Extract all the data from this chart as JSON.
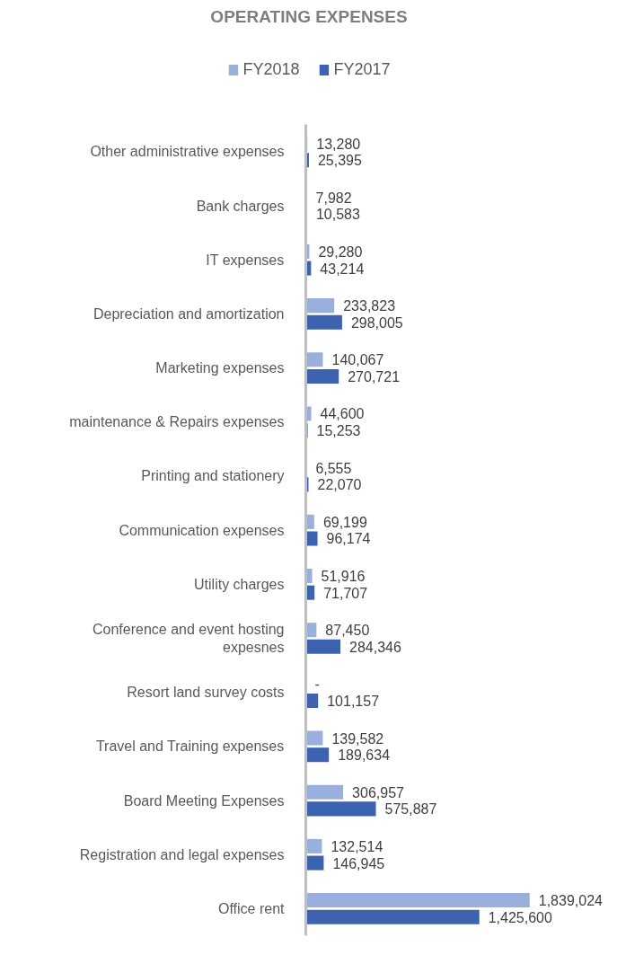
{
  "chart_data": {
    "type": "bar",
    "orientation": "horizontal",
    "title": "OPERATING EXPENSES",
    "categories": [
      "Other administrative expenses",
      "Bank charges",
      "IT expenses",
      "Depreciation and amortization",
      "Marketing expenses",
      "maintenance & Repairs expenses",
      "Printing and stationery",
      "Communication expenses",
      "Utility charges",
      "Conference and event hosting expesnes",
      "Resort land survey costs",
      "Travel and Training expenses",
      "Board Meeting Expenses",
      "Registration and legal expenses",
      "Office rent"
    ],
    "series": [
      {
        "name": "FY2018",
        "color": "#9aafdc",
        "values": [
          13280,
          7982,
          29280,
          233823,
          140067,
          44600,
          6555,
          69199,
          51916,
          87450,
          0,
          139582,
          306957,
          132514,
          1839024
        ],
        "value_labels": [
          "13,280",
          "7,982",
          "29,280",
          "233,823",
          "140,067",
          "44,600",
          "6,555",
          "69,199",
          "51,916",
          "87,450",
          "-",
          "139,582",
          "306,957",
          "132,514",
          "1,839,024"
        ]
      },
      {
        "name": "FY2017",
        "color": "#3c62b0",
        "values": [
          25395,
          10583,
          43214,
          298005,
          270721,
          15253,
          22070,
          96174,
          71707,
          284346,
          101157,
          189634,
          575887,
          146945,
          1425600
        ],
        "value_labels": [
          "25,395",
          "10,583",
          "43,214",
          "298,005",
          "270,721",
          "15,253",
          "22,070",
          "96,174",
          "71,707",
          "284,346",
          "101,157",
          "189,634",
          "575,887",
          "146,945",
          "1,425,600"
        ]
      }
    ],
    "legend": "top",
    "grid": false
  }
}
